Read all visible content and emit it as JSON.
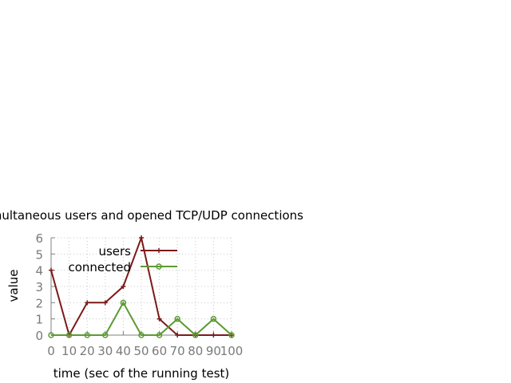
{
  "chart_data": {
    "type": "line",
    "title": "Simultaneous users and opened TCP/UDP connections",
    "xlabel": "time (sec of the running test)",
    "ylabel": "value",
    "xlim": [
      0,
      100
    ],
    "ylim": [
      0,
      6
    ],
    "x_ticks": [
      "0",
      "10",
      "20",
      "30",
      "40",
      "50",
      "60",
      "70",
      "80",
      "90",
      "100"
    ],
    "y_ticks": [
      "0",
      "1",
      "2",
      "3",
      "4",
      "5",
      "6"
    ],
    "grid": true,
    "legend_position": "top-left",
    "series": [
      {
        "name": "users",
        "color": "#7b1a1a",
        "marker": "plus",
        "x": [
          0,
          10,
          20,
          30,
          40,
          50,
          60,
          70,
          80,
          90,
          100
        ],
        "y": [
          4,
          0,
          2,
          2,
          3,
          6,
          1,
          0,
          0,
          0,
          0
        ]
      },
      {
        "name": "connected",
        "color": "#5c9a32",
        "marker": "circle",
        "x": [
          0,
          10,
          20,
          30,
          40,
          50,
          60,
          70,
          80,
          90,
          100
        ],
        "y": [
          0,
          0,
          0,
          0,
          2,
          0,
          0,
          1,
          0,
          1,
          0
        ]
      }
    ]
  }
}
